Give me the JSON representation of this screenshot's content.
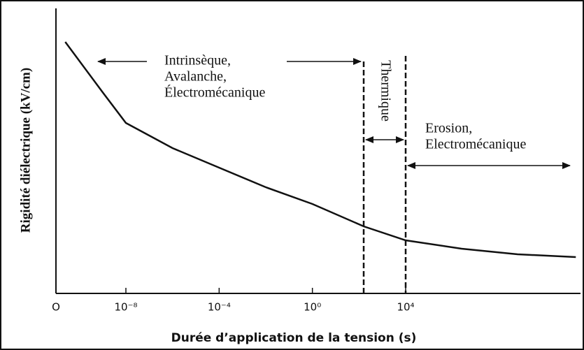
{
  "chart_data": {
    "type": "line",
    "xlabel": "Durée d’application de la tension (s)",
    "ylabel": "Rigidité diélectrique (kV/cm)",
    "xlog": true,
    "xlim": [
      -11,
      11.5
    ],
    "xticks": [
      {
        "value": -11,
        "label": "O"
      },
      {
        "value": -8,
        "label": "10⁻⁸"
      },
      {
        "value": -4,
        "label": "10⁻⁴"
      },
      {
        "value": 0,
        "label": "10⁰"
      },
      {
        "value": 4,
        "label": "10⁴"
      }
    ],
    "ylim": [
      0,
      100
    ],
    "series": [
      {
        "color": "#111111",
        "x": [
          -10.6,
          -9,
          -8,
          -6,
          -4,
          -2,
          0,
          2.2,
          4,
          6.4,
          8.8,
          11.3
        ],
        "values": [
          90,
          72,
          61,
          52,
          45,
          38,
          32,
          24,
          19,
          16,
          14,
          13
        ]
      }
    ],
    "vlines": [
      2.2,
      4
    ],
    "annotations": {
      "region1": [
        "Intrinsèque,",
        "Avalanche,",
        "Électromécanique"
      ],
      "region2": "Thermique",
      "region3": [
        "Erosion,",
        "Electromécanique"
      ]
    }
  }
}
